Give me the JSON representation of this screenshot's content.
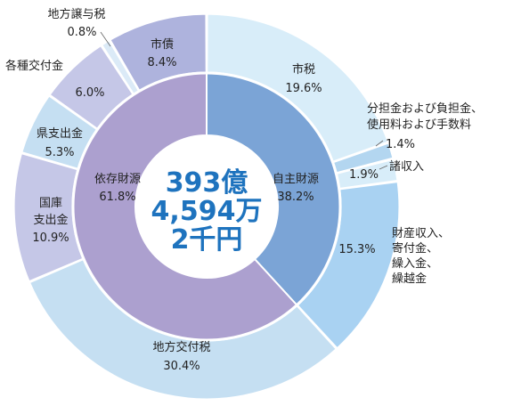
{
  "chart_data": {
    "type": "pie",
    "variant": "nested-donut",
    "center_text": [
      "393億",
      "4,594万",
      "2千円"
    ],
    "inner": [
      {
        "label": "自主財源",
        "value": 38.2,
        "value_text": "38.2%",
        "color": "#7ba4d6"
      },
      {
        "label": "依存財源",
        "value": 61.8,
        "value_text": "61.8%",
        "color": "#aca0cf"
      }
    ],
    "outer": [
      {
        "label": "市税",
        "value": 19.6,
        "value_text": "19.6%",
        "color": "#d8edf9"
      },
      {
        "label": "分担金および負担金、使用料および手数料",
        "label_lines": [
          "分担金および負担金、",
          "使用料および手数料"
        ],
        "value": 1.4,
        "value_text": "1.4%",
        "color": "#b3d6f0"
      },
      {
        "label": "諸収入",
        "value": 1.9,
        "value_text": "1.9%",
        "color": "#d8edf9"
      },
      {
        "label": "財産収入、寄付金、繰入金、繰越金",
        "label_lines": [
          "財産収入、",
          "寄付金、",
          "繰入金、",
          "繰越金"
        ],
        "value": 15.3,
        "value_text": "15.3%",
        "color": "#a9d2f2"
      },
      {
        "label": "地方交付税",
        "value": 30.4,
        "value_text": "30.4%",
        "color": "#c5dff2"
      },
      {
        "label": "国庫支出金",
        "label_lines": [
          "国庫",
          "支出金"
        ],
        "value": 10.9,
        "value_text": "10.9%",
        "color": "#c5c7e7"
      },
      {
        "label": "県支出金",
        "value": 5.3,
        "value_text": "5.3%",
        "color": "#c5dff2"
      },
      {
        "label": "各種交付金",
        "value": 6.0,
        "value_text": "6.0%",
        "color": "#c5c7e7"
      },
      {
        "label": "地方譲与税",
        "value": 0.8,
        "value_text": "0.8%",
        "color": "#dbeaf7"
      },
      {
        "label": "市債",
        "value": 8.4,
        "value_text": "8.4%",
        "color": "#aeb3dd"
      }
    ]
  }
}
